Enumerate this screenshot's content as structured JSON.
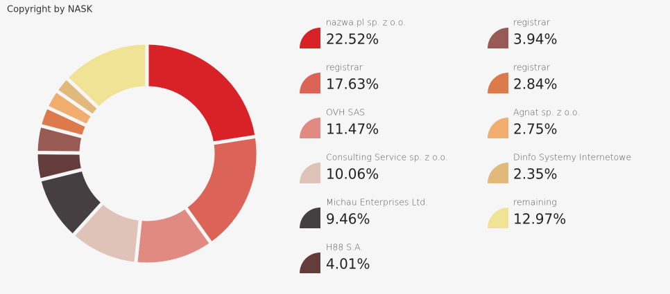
{
  "chart_data": {
    "type": "donut",
    "title": "Copyright by NASK",
    "categories": [
      "nazwa.pl sp. z o.o.",
      "registrar",
      "OVH SAS",
      "Consulting Service sp. z o.o.",
      "Michau Enterprises Ltd.",
      "H88 S.A.",
      "registrar",
      "registrar",
      "Agnat sp. z o.o.",
      "Dinfo Systemy Internetowe",
      "remaining"
    ],
    "values": [
      22.52,
      17.63,
      11.47,
      10.06,
      9.46,
      4.01,
      3.94,
      2.84,
      2.75,
      2.35,
      12.97
    ],
    "value_labels": [
      "22.52%",
      "17.63%",
      "11.47%",
      "10.06%",
      "9.46%",
      "4.01%",
      "3.94%",
      "2.84%",
      "2.75%",
      "2.35%",
      "12.97%"
    ],
    "colors": [
      "#d92128",
      "#dc6358",
      "#e08a82",
      "#dfc3b8",
      "#453f41",
      "#643c3c",
      "#975a54",
      "#dc7a4b",
      "#f1ad6d",
      "#e1b97b",
      "#f1e396"
    ]
  }
}
